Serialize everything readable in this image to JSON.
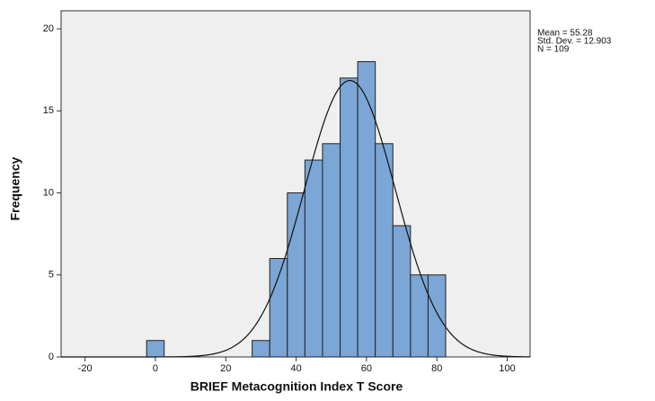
{
  "chart_data": {
    "type": "histogram",
    "x_label": "BRIEF Metacognition Index T Score",
    "y_label": "Frequency",
    "bins": [
      -2.5,
      2.5,
      7.5,
      12.5,
      17.5,
      22.5,
      27.5,
      32.5,
      37.5,
      42.5,
      47.5,
      52.5,
      57.5,
      62.5,
      67.5,
      72.5,
      77.5,
      82.5
    ],
    "values": [
      1,
      0,
      0,
      0,
      0,
      0,
      1,
      6,
      10,
      12,
      13,
      17,
      18,
      13,
      8,
      5,
      5
    ],
    "color": "#7ba6d6",
    "xlim": [
      -26.8,
      106.5
    ],
    "ylim": [
      0,
      21.1
    ],
    "xticks": [
      -20,
      0,
      20,
      40,
      60,
      80,
      100
    ],
    "yticks": [
      0,
      5,
      10,
      15,
      20
    ],
    "normal_curve": {
      "mean": 55.28,
      "std_dev": 12.903,
      "n": 109,
      "labels": [
        "Mean = 55.28",
        "Std. Dev. = 12.903",
        "N = 109"
      ]
    }
  }
}
